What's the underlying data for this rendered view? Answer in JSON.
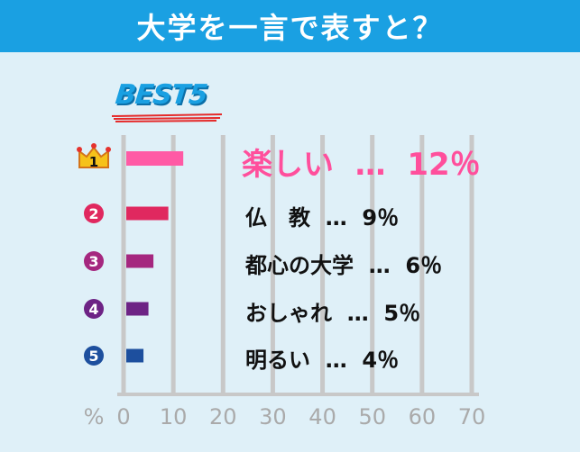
{
  "header": {
    "title": "大学を一言で表すと？"
  },
  "badge": {
    "text": "BEST5"
  },
  "colors": {
    "header_bg": "#1aa0e2",
    "background": "#dff0f8",
    "top_text": "#ff4f9c",
    "grid": "#c8c8c8"
  },
  "chart_data": {
    "type": "bar",
    "orientation": "horizontal",
    "categories": [
      "楽しい",
      "仏　教",
      "都心の大学",
      "おしゃれ",
      "明るい"
    ],
    "values": [
      12,
      9,
      6,
      5,
      4
    ],
    "value_labels": [
      "12％",
      "9％",
      "6％",
      "5％",
      "4％"
    ],
    "separator": "…",
    "ranks": [
      "1",
      "2",
      "3",
      "4",
      "5"
    ],
    "bar_colors": [
      "#ff5aa5",
      "#e0285f",
      "#a5277f",
      "#6d2385",
      "#1d4f9e"
    ],
    "xlabel": "%",
    "xlim": [
      0,
      70
    ],
    "xticks": [
      "0",
      "10",
      "20",
      "30",
      "40",
      "50",
      "60",
      "70"
    ],
    "grid": true
  }
}
